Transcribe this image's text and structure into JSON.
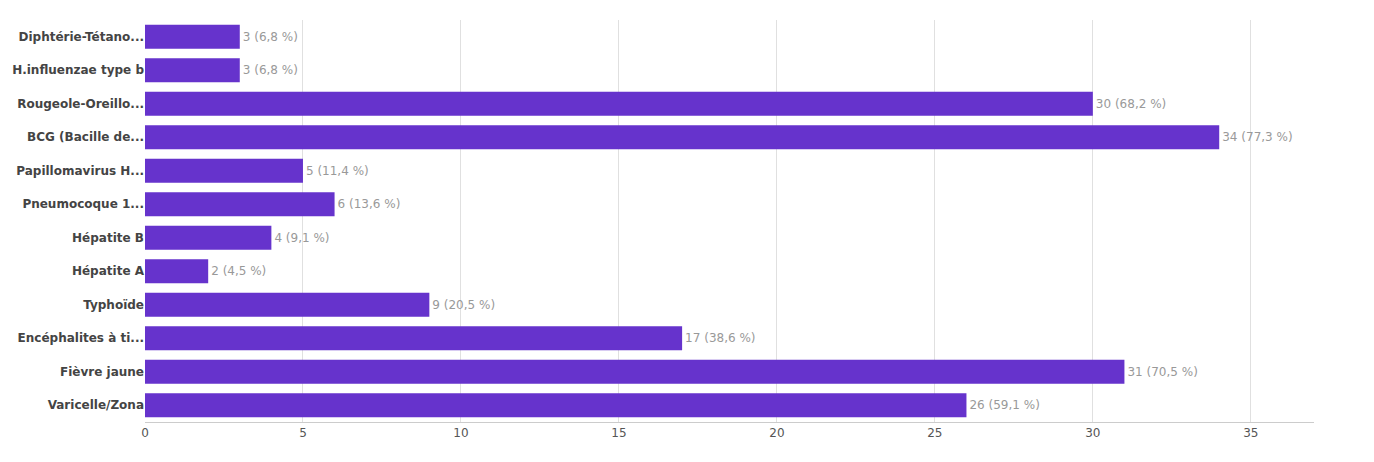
{
  "chart_data": {
    "type": "bar",
    "orientation": "horizontal",
    "categories": [
      "Diphtérie-Tétano...",
      "H.influenzae type b",
      "Rougeole-Oreillo...",
      "BCG (Bacille de...",
      "Papillomavirus H...",
      "Pneumocoque 1...",
      "Hépatite B",
      "Hépatite A",
      "Typhoïde",
      "Encéphalites à ti...",
      "Fièvre jaune",
      "Varicelle/Zona"
    ],
    "values": [
      3,
      3,
      30,
      34,
      5,
      6,
      4,
      2,
      9,
      17,
      31,
      26
    ],
    "value_labels": [
      "3 (6,8 %)",
      "3 (6,8 %)",
      "30 (68,2 %)",
      "34 (77,3 %)",
      "5 (11,4 %)",
      "6 (13,6 %)",
      "4 (9,1 %)",
      "2 (4,5 %)",
      "9 (20,5 %)",
      "17 (38,6 %)",
      "31 (70,5 %)",
      "26 (59,1 %)"
    ],
    "color": "#6633cc",
    "xlim": [
      0,
      37
    ],
    "xticks": [
      0,
      5,
      10,
      15,
      20,
      25,
      30,
      35
    ],
    "grid": true,
    "data_labels": true
  }
}
